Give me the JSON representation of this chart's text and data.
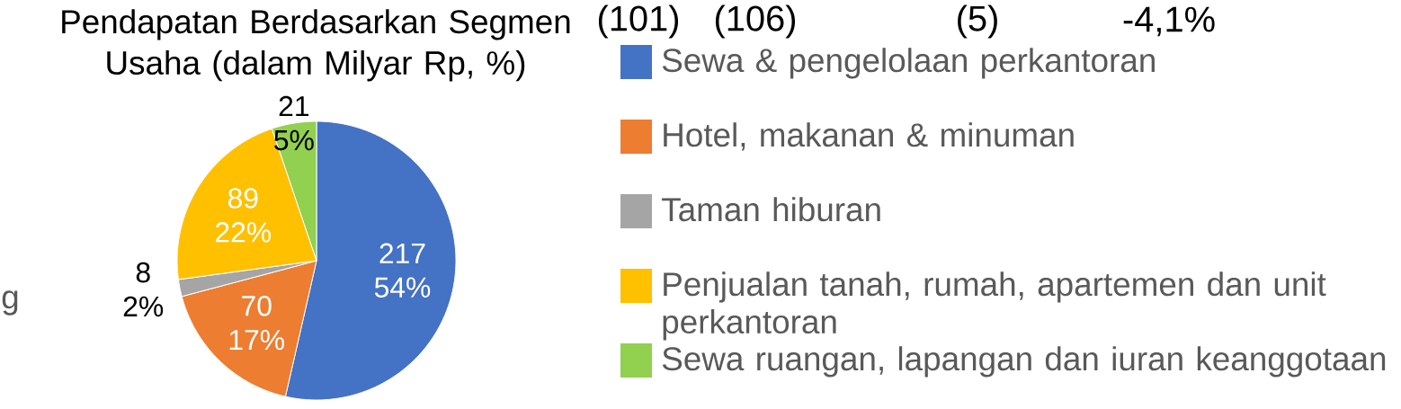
{
  "chart_data": {
    "type": "pie",
    "title": "Pendapatan Berdasarkan Segmen Usaha (dalam Milyar Rp, %)",
    "categories": [
      "Sewa & pengelolaan perkantoran",
      "Hotel, makanan & minuman",
      "Taman hiburan",
      "Penjualan tanah, rumah, apartemen dan unit perkantoran",
      "Sewa ruangan, lapangan dan iuran keanggotaan"
    ],
    "values": [
      217,
      70,
      8,
      89,
      21
    ],
    "colors": [
      "#4472c4",
      "#ed7d31",
      "#a5a5a5",
      "#ffc000",
      "#92d050"
    ],
    "value_labels": [
      "217 54%",
      "70 17%",
      "8 2%",
      "89 22%",
      "21 5%"
    ],
    "legend": "right",
    "annotations": [
      "(101)",
      "(106)",
      "(5)",
      "-4,1%",
      "g"
    ]
  }
}
